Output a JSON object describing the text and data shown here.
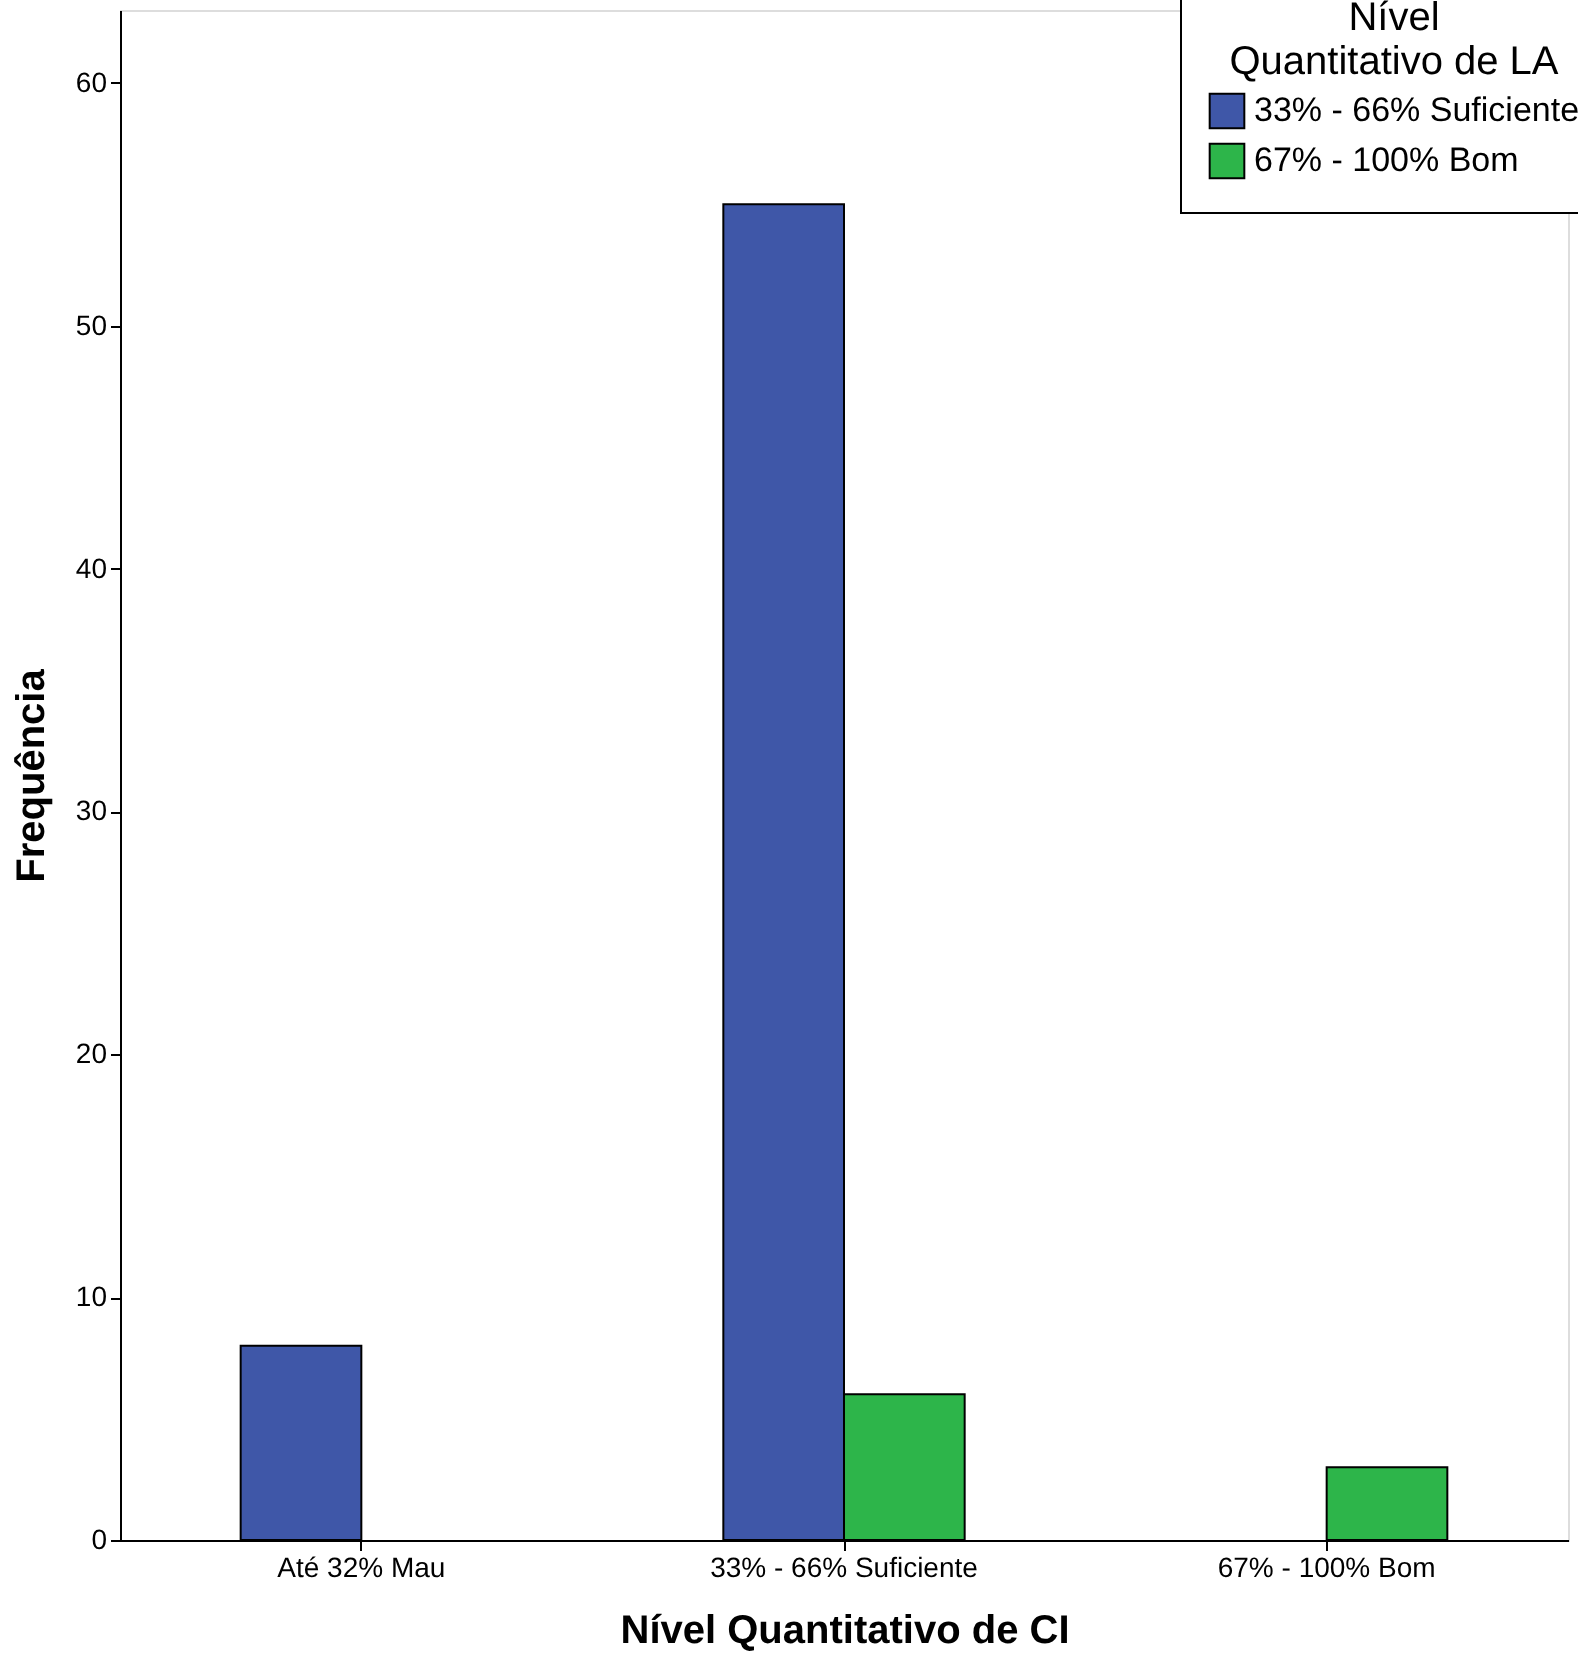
{
  "chart_data": {
    "type": "bar",
    "xlabel": "Nível Quantitativo de CI",
    "ylabel": "Frequência",
    "legend_title": "Nível Quantitativo de LA",
    "categories": [
      "Até 32% Mau",
      "33% - 66% Suficiente",
      "67% - 100% Bom"
    ],
    "series": [
      {
        "name": "33% - 66% Suficiente",
        "color": "#3f57a8",
        "values": [
          8,
          55,
          null
        ]
      },
      {
        "name": "67% - 100% Bom",
        "color": "#2db54a",
        "values": [
          null,
          6,
          3
        ]
      }
    ],
    "ylim": [
      0,
      63
    ],
    "yticks": [
      0,
      10,
      20,
      30,
      40,
      50,
      60
    ],
    "grid": false,
    "legend": "top right"
  }
}
